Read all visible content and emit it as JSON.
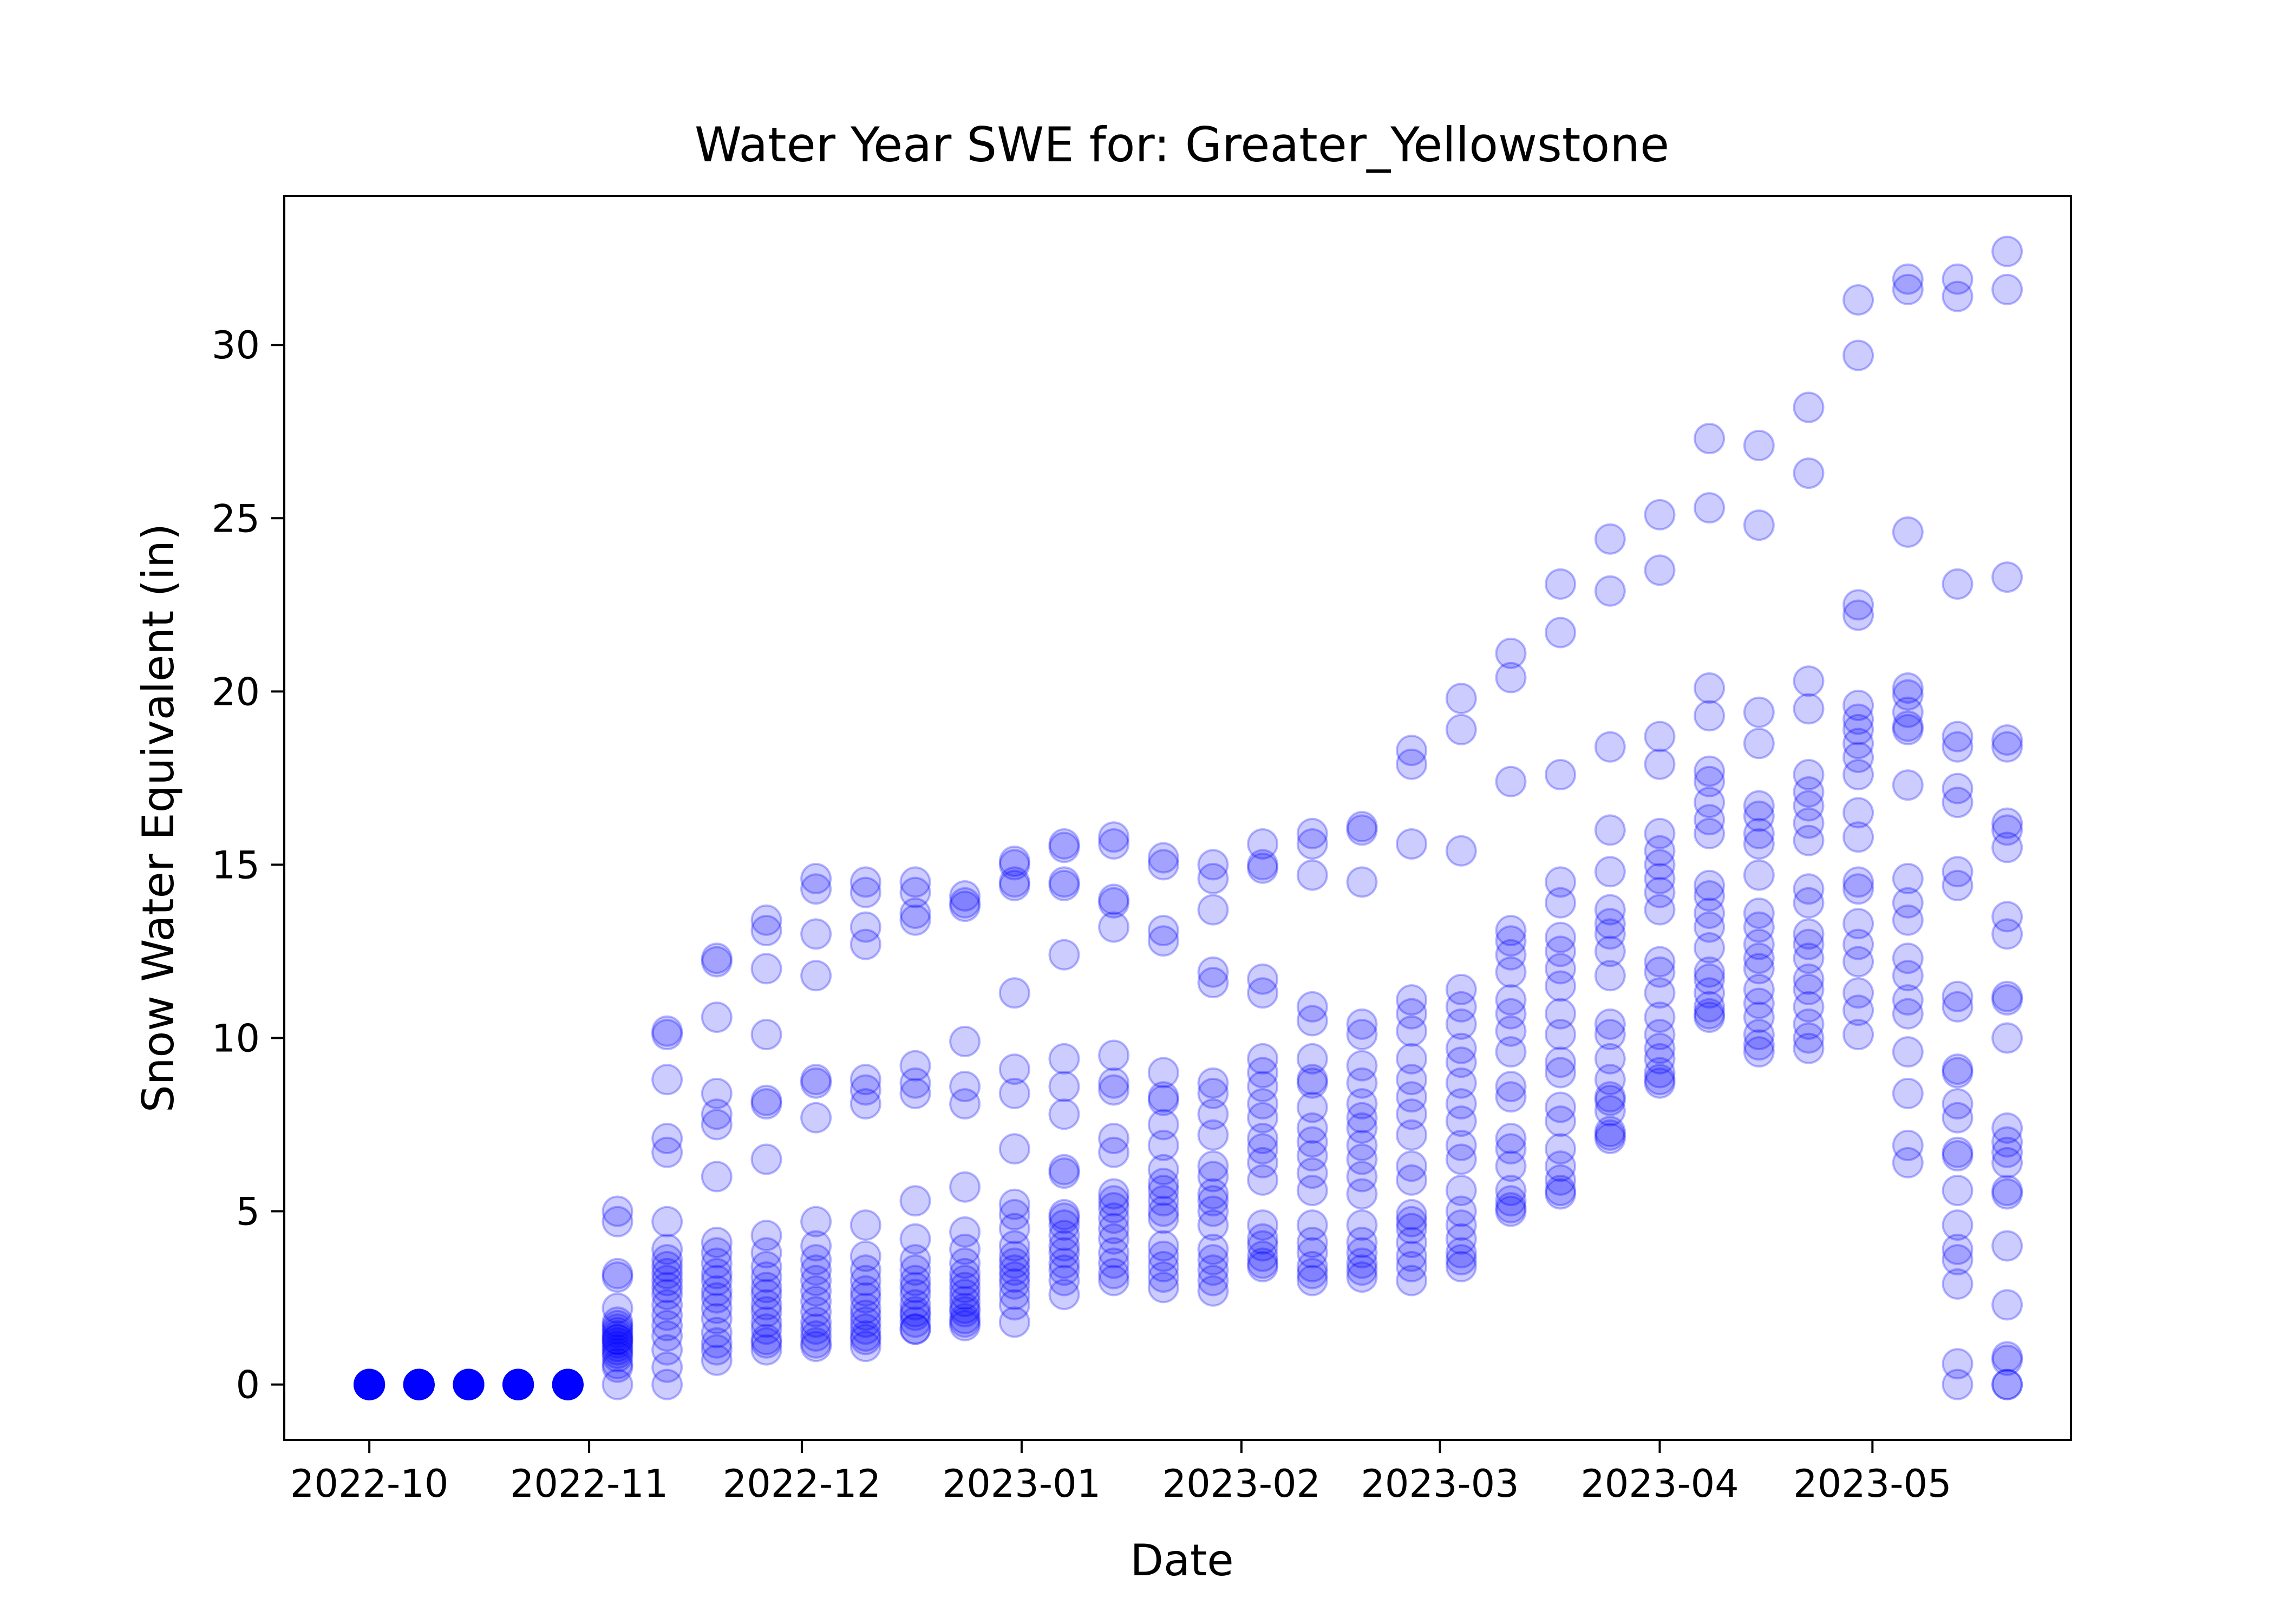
{
  "chart_data": {
    "type": "scatter",
    "title": "Water Year SWE for: Greater_Yellowstone",
    "xlabel": "Date",
    "ylabel": "Snow Water Equivalent (in)",
    "x_ticks": [
      "2022-10",
      "2022-11",
      "2022-12",
      "2023-01",
      "2023-02",
      "2023-03",
      "2023-04",
      "2023-05"
    ],
    "y_ticks": [
      "0",
      "5",
      "10",
      "15",
      "20",
      "25",
      "30"
    ],
    "ylim": [
      -1.6,
      34.3
    ],
    "xlim": [
      "2022-09-19",
      "2023-05-29"
    ],
    "grid": false,
    "marker_color": "#0000ff",
    "marker_alpha": 0.2,
    "dates": [
      "2022-10-01",
      "2022-10-08",
      "2022-10-15",
      "2022-10-22",
      "2022-10-29",
      "2022-11-05",
      "2022-11-12",
      "2022-11-19",
      "2022-11-26",
      "2022-12-03",
      "2022-12-10",
      "2022-12-17",
      "2022-12-24",
      "2022-12-31",
      "2023-01-07",
      "2023-01-14",
      "2023-01-21",
      "2023-01-28",
      "2023-02-04",
      "2023-02-11",
      "2023-02-18",
      "2023-02-25",
      "2023-03-04",
      "2023-03-11",
      "2023-03-18",
      "2023-03-25",
      "2023-04-01",
      "2023-04-08",
      "2023-04-15",
      "2023-04-22",
      "2023-04-29",
      "2023-05-06",
      "2023-05-13",
      "2023-05-20"
    ],
    "swe": [
      [
        0,
        0,
        0,
        0,
        0,
        0,
        0,
        0,
        0,
        0,
        0,
        0,
        0,
        0,
        0,
        0,
        0,
        0,
        0,
        0
      ],
      [
        0,
        0,
        0,
        0,
        0,
        0,
        0,
        0,
        0,
        0,
        0,
        0,
        0,
        0,
        0,
        0,
        0,
        0,
        0,
        0
      ],
      [
        0,
        0,
        0,
        0,
        0,
        0,
        0,
        0,
        0,
        0,
        0,
        0,
        0,
        0,
        0,
        0,
        0,
        0,
        0,
        0
      ],
      [
        0,
        0,
        0,
        0,
        0,
        0,
        0,
        0,
        0,
        0,
        0,
        0,
        0,
        0,
        0,
        0,
        0,
        0,
        0,
        0
      ],
      [
        0,
        0,
        0,
        0,
        0,
        0,
        0,
        0,
        0,
        0,
        0,
        0,
        0,
        0,
        0,
        0,
        0,
        0,
        0,
        0
      ],
      [
        5.0,
        4.7,
        3.2,
        3.1,
        2.2,
        1.8,
        1.6,
        1.5,
        1.4,
        1.3,
        1.2,
        1.1,
        1.0,
        0.9,
        0.8,
        0.6,
        0.5,
        1.7,
        1.3,
        0.0
      ],
      [
        10.2,
        10.1,
        8.8,
        7.1,
        6.7,
        4.7,
        3.9,
        3.6,
        3.4,
        3.2,
        3.0,
        2.8,
        2.6,
        2.3,
        2.0,
        1.7,
        1.4,
        1.0,
        0.5,
        0.0
      ],
      [
        12.3,
        12.2,
        10.6,
        8.4,
        7.8,
        7.5,
        6.0,
        4.1,
        3.8,
        3.5,
        3.2,
        3.0,
        2.7,
        2.5,
        2.2,
        1.9,
        1.5,
        1.2,
        1.0,
        0.7
      ],
      [
        13.4,
        13.1,
        12.0,
        10.1,
        8.2,
        8.1,
        6.5,
        4.3,
        3.8,
        3.4,
        3.1,
        2.8,
        2.6,
        2.3,
        2.1,
        1.8,
        1.6,
        1.3,
        1.2,
        1.0
      ],
      [
        14.6,
        14.3,
        13.0,
        11.8,
        8.8,
        8.7,
        7.7,
        4.7,
        4.0,
        3.6,
        3.3,
        3.0,
        2.7,
        2.4,
        2.1,
        1.8,
        1.6,
        1.4,
        1.2,
        1.1
      ],
      [
        14.5,
        14.2,
        13.2,
        12.7,
        8.8,
        8.5,
        8.1,
        4.6,
        3.7,
        3.3,
        3.0,
        2.7,
        2.5,
        2.2,
        2.0,
        1.8,
        1.6,
        1.4,
        1.3,
        1.1
      ],
      [
        14.5,
        14.2,
        13.6,
        13.4,
        9.2,
        8.7,
        8.4,
        5.3,
        4.2,
        3.6,
        3.3,
        3.0,
        2.8,
        2.6,
        2.3,
        2.1,
        2.0,
        1.8,
        1.6,
        1.6
      ],
      [
        14.1,
        13.9,
        13.8,
        9.9,
        8.6,
        8.1,
        5.7,
        4.4,
        3.9,
        3.5,
        3.2,
        3.0,
        2.8,
        2.6,
        2.4,
        2.2,
        2.1,
        1.9,
        1.8,
        1.7
      ],
      [
        15.1,
        15.0,
        14.5,
        14.4,
        11.3,
        9.1,
        8.4,
        6.8,
        5.2,
        4.9,
        4.5,
        4.0,
        3.7,
        3.5,
        3.3,
        3.1,
        2.9,
        2.6,
        2.3,
        1.8
      ],
      [
        15.6,
        15.5,
        14.5,
        14.4,
        12.4,
        9.4,
        8.6,
        7.8,
        6.2,
        6.1,
        4.9,
        4.8,
        4.6,
        4.3,
        4.0,
        3.8,
        3.5,
        3.3,
        3.0,
        2.6
      ],
      [
        15.8,
        15.6,
        14.0,
        13.9,
        13.2,
        9.5,
        8.7,
        8.5,
        7.1,
        6.7,
        5.5,
        5.3,
        5.1,
        4.8,
        4.5,
        4.2,
        3.8,
        3.5,
        3.2,
        3.0
      ],
      [
        15.2,
        15.0,
        13.1,
        12.8,
        9.0,
        8.3,
        8.2,
        7.5,
        6.9,
        6.2,
        5.8,
        5.6,
        5.3,
        5.0,
        4.8,
        4.0,
        3.7,
        3.4,
        3.1,
        2.8
      ],
      [
        15.0,
        14.6,
        13.7,
        11.9,
        11.6,
        8.7,
        8.4,
        7.8,
        7.2,
        6.3,
        6.0,
        5.5,
        5.3,
        5.0,
        4.6,
        3.9,
        3.6,
        3.3,
        3.0,
        2.7
      ],
      [
        15.6,
        15.0,
        14.9,
        11.7,
        11.3,
        9.4,
        9.0,
        8.6,
        8.1,
        7.7,
        7.1,
        6.8,
        6.4,
        5.9,
        4.6,
        4.2,
        4.0,
        3.7,
        3.5,
        3.4
      ],
      [
        15.9,
        15.6,
        14.7,
        10.9,
        10.5,
        9.4,
        8.8,
        8.7,
        8.0,
        7.4,
        7.0,
        6.6,
        6.1,
        5.6,
        4.6,
        4.1,
        3.8,
        3.4,
        3.2,
        3.0
      ],
      [
        16.1,
        16.0,
        14.5,
        10.4,
        10.1,
        9.2,
        8.7,
        8.1,
        7.7,
        7.4,
        6.9,
        6.5,
        6.0,
        5.5,
        4.6,
        4.1,
        3.8,
        3.5,
        3.3,
        3.1
      ],
      [
        18.3,
        17.9,
        15.6,
        11.1,
        10.7,
        10.2,
        9.4,
        8.8,
        8.3,
        7.8,
        7.2,
        6.3,
        5.9,
        4.9,
        4.7,
        4.5,
        4.1,
        3.7,
        3.4,
        3.0
      ],
      [
        19.8,
        18.9,
        15.4,
        11.4,
        10.9,
        10.4,
        9.7,
        9.3,
        8.7,
        8.1,
        7.6,
        6.9,
        6.5,
        5.6,
        5.0,
        4.6,
        4.2,
        3.8,
        3.6,
        3.4
      ],
      [
        21.1,
        20.4,
        17.4,
        13.1,
        12.8,
        12.4,
        11.9,
        11.1,
        10.7,
        10.2,
        9.6,
        8.6,
        8.3,
        7.1,
        6.8,
        6.3,
        5.6,
        5.3,
        5.1,
        5.0
      ],
      [
        23.1,
        21.7,
        17.6,
        14.5,
        13.9,
        12.9,
        12.5,
        12.0,
        11.5,
        10.7,
        10.1,
        9.3,
        9.0,
        8.0,
        7.6,
        6.8,
        6.3,
        5.9,
        5.6,
        5.5
      ],
      [
        24.4,
        22.9,
        18.4,
        16.0,
        14.8,
        13.7,
        13.3,
        13.0,
        12.5,
        11.8,
        10.4,
        10.1,
        9.4,
        8.8,
        8.3,
        7.9,
        7.3,
        7.2,
        7.1,
        8.2
      ],
      [
        25.1,
        23.5,
        18.7,
        17.9,
        15.9,
        15.4,
        15.0,
        14.6,
        14.2,
        13.7,
        12.2,
        11.9,
        11.3,
        10.6,
        10.1,
        9.7,
        9.4,
        9.0,
        8.8,
        8.7
      ],
      [
        27.3,
        25.3,
        20.1,
        19.3,
        17.7,
        17.4,
        16.8,
        16.3,
        15.9,
        14.4,
        14.1,
        13.6,
        13.2,
        12.6,
        11.9,
        11.7,
        11.3,
        10.9,
        10.7,
        10.6
      ],
      [
        27.1,
        24.8,
        19.4,
        18.5,
        16.7,
        16.4,
        15.9,
        15.6,
        14.7,
        13.6,
        13.2,
        12.7,
        12.3,
        12.0,
        11.4,
        11.0,
        10.6,
        10.1,
        9.8,
        9.6
      ],
      [
        28.2,
        26.3,
        20.3,
        19.5,
        17.6,
        17.1,
        16.7,
        16.2,
        15.7,
        14.3,
        13.9,
        13.0,
        12.7,
        12.3,
        11.7,
        11.4,
        10.9,
        10.4,
        10.0,
        9.7
      ],
      [
        31.3,
        29.7,
        22.5,
        22.2,
        19.6,
        19.2,
        18.9,
        18.5,
        18.1,
        17.6,
        16.5,
        15.8,
        14.5,
        14.3,
        13.3,
        12.7,
        12.2,
        11.3,
        10.8,
        10.1
      ],
      [
        31.9,
        31.6,
        24.6,
        20.1,
        19.9,
        19.4,
        19.0,
        18.9,
        17.3,
        14.6,
        13.9,
        13.4,
        12.3,
        11.8,
        11.1,
        10.7,
        9.6,
        8.4,
        6.9,
        6.4
      ],
      [
        31.9,
        31.4,
        23.1,
        18.7,
        18.4,
        17.2,
        16.8,
        14.8,
        14.4,
        11.2,
        10.9,
        9.1,
        9.0,
        8.1,
        7.7,
        6.7,
        6.6,
        5.6,
        4.6,
        3.9
      ],
      [
        32.7,
        31.6,
        23.3,
        18.6,
        18.4,
        16.2,
        16.0,
        15.5,
        13.5,
        13.0,
        11.2,
        11.1,
        10.0,
        7.4,
        7.0,
        6.7,
        6.4,
        5.6,
        5.5,
        4.0
      ]
    ],
    "extra_points": {
      "dates": [
        "2023-05-13",
        "2023-05-13",
        "2023-05-13",
        "2023-05-20",
        "2023-05-20",
        "2023-05-20",
        "2023-05-20",
        "2023-05-20",
        "2023-05-13"
      ],
      "values": [
        3.6,
        2.9,
        0.6,
        2.3,
        0.8,
        0.7,
        0.0,
        0.0,
        0.0
      ]
    }
  }
}
